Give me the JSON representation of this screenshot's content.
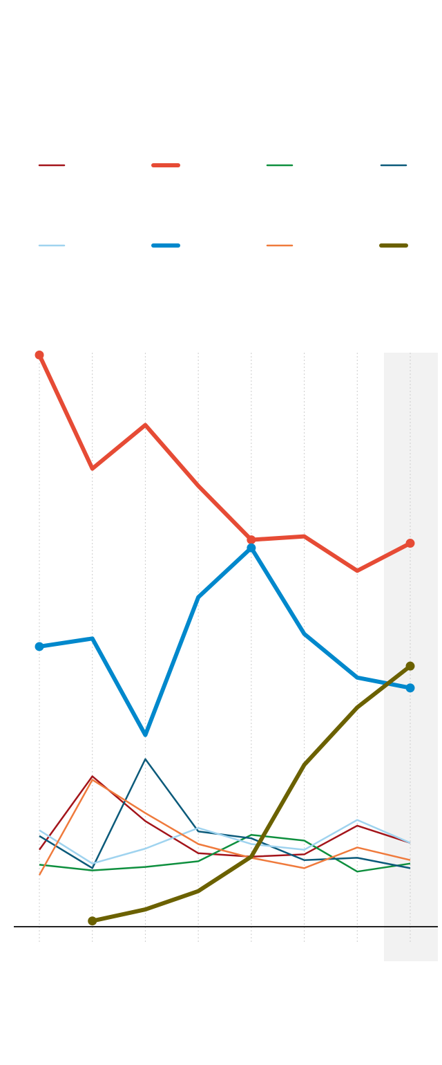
{
  "chart_data": {
    "type": "line",
    "categories": [
      null,
      null,
      null,
      null,
      null,
      null,
      null,
      null
    ],
    "ylim": [
      0,
      50
    ],
    "series": [
      {
        "color": "#a3141a",
        "width": 2.5,
        "values": [
          6.7,
          13.1,
          9.2,
          6.4,
          6.1,
          6.3,
          8.8,
          7.3
        ]
      },
      {
        "color": "#e64b35",
        "width": 6,
        "markers": [
          0,
          4,
          7
        ],
        "values": [
          49.8,
          39.9,
          43.7,
          38.4,
          33.7,
          34.0,
          31.0,
          33.4
        ]
      },
      {
        "color": "#0e8f3e",
        "width": 2.5,
        "values": [
          5.4,
          4.9,
          5.2,
          5.7,
          8.0,
          7.5,
          4.8,
          5.5
        ]
      },
      {
        "color": "#0b5a7a",
        "width": 2.5,
        "values": [
          7.9,
          5.1,
          14.6,
          8.3,
          7.7,
          5.8,
          6.0,
          5.1
        ]
      },
      {
        "color": "#9fd3ef",
        "width": 2.5,
        "values": [
          8.4,
          5.5,
          6.8,
          8.6,
          7.2,
          6.7,
          9.3,
          7.3
        ]
      },
      {
        "color": "#0088cc",
        "width": 6,
        "markers": [
          0,
          4,
          7
        ],
        "values": [
          24.4,
          25.1,
          16.7,
          28.7,
          33.0,
          25.5,
          21.7,
          20.8
        ]
      },
      {
        "color": "#ef7a3c",
        "width": 2.5,
        "values": [
          4.5,
          12.8,
          9.9,
          7.2,
          6.0,
          5.1,
          6.9,
          5.8
        ]
      },
      {
        "color": "#6b6100",
        "width": 6,
        "markers": [
          1,
          7
        ],
        "values": [
          null,
          0.5,
          1.5,
          3.1,
          6.1,
          14.1,
          19.1,
          22.7
        ]
      }
    ]
  }
}
